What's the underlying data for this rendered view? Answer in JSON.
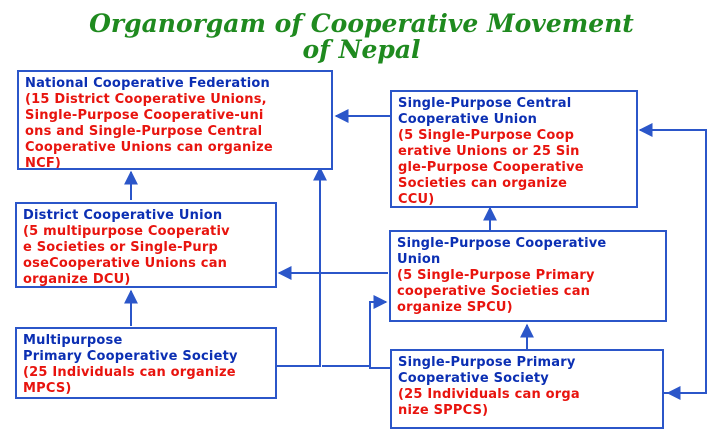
{
  "title": {
    "line1": "Organorgam of Cooperative Movement",
    "line2": "of Nepal"
  },
  "boxes": {
    "ncf": {
      "title": "National Cooperative Federation",
      "body": "(15 District Cooperative Unions,\nSingle-Purpose Cooperative-uni\nons and Single-Purpose Central\nCooperative Unions can organize\nNCF)"
    },
    "dcu": {
      "title": "District Cooperative Union",
      "body": "(5 multipurpose Cooperativ\ne Societies  or  Single-Purp\noseCooperative Unions can\n organize DCU)"
    },
    "mpcs": {
      "title": "Multipurpose\nPrimary Cooperative Society",
      "body": "(25 Individuals can organize\nMPCS)"
    },
    "ccu": {
      "title": "Single-Purpose Central\n   Cooperative Union",
      "body": "(5 Single-Purpose Coop\nerative Unions or 25 Sin\ngle-Purpose Cooperative\nSocieties can organize\nCCU)"
    },
    "spcu": {
      "title": "Single-Purpose Cooperative\nUnion",
      "body": "(5 Single-Purpose Primary\ncooperative Societies can\norganize SPCU)"
    },
    "sppcs": {
      "title": "Single-Purpose Primary\nCooperative Society",
      "body": "(25 Individuals can orga\nnize SPPCS)"
    }
  },
  "colors": {
    "title": "#1f8a1f",
    "box_title": "#0b2fb3",
    "box_body": "#e8140e",
    "border": "#2b56c9",
    "arrow": "#2b56c9"
  }
}
